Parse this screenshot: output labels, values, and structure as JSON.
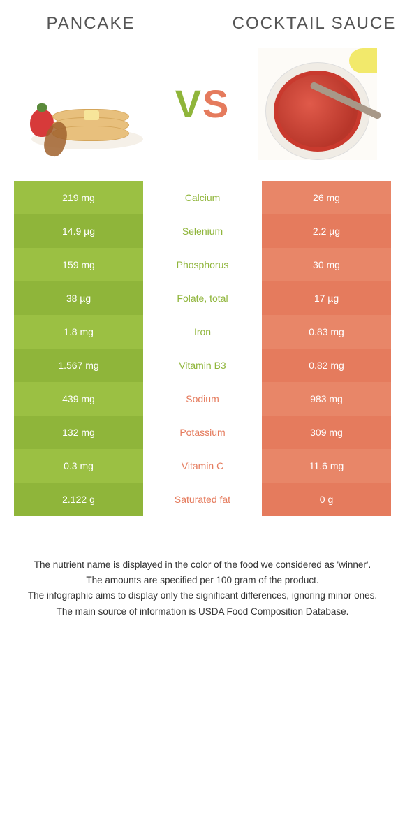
{
  "title_left": "PANCAKE",
  "title_right": "COCKTAIL SAUCE",
  "vs_left_letter": "V",
  "vs_right_letter": "S",
  "colors": {
    "left": "#8fb53a",
    "left_alt": "#9bc043",
    "right": "#e57b5d",
    "right_alt": "#e88668",
    "text": "#3a3a3a"
  },
  "rows": [
    {
      "left": "219 mg",
      "label": "Calcium",
      "right": "26 mg",
      "winner": "left"
    },
    {
      "left": "14.9 µg",
      "label": "Selenium",
      "right": "2.2 µg",
      "winner": "left"
    },
    {
      "left": "159 mg",
      "label": "Phosphorus",
      "right": "30 mg",
      "winner": "left"
    },
    {
      "left": "38 µg",
      "label": "Folate, total",
      "right": "17 µg",
      "winner": "left"
    },
    {
      "left": "1.8 mg",
      "label": "Iron",
      "right": "0.83 mg",
      "winner": "left"
    },
    {
      "left": "1.567 mg",
      "label": "Vitamin B3",
      "right": "0.82 mg",
      "winner": "left"
    },
    {
      "left": "439 mg",
      "label": "Sodium",
      "right": "983 mg",
      "winner": "right"
    },
    {
      "left": "132 mg",
      "label": "Potassium",
      "right": "309 mg",
      "winner": "right"
    },
    {
      "left": "0.3 mg",
      "label": "Vitamin C",
      "right": "11.6 mg",
      "winner": "right"
    },
    {
      "left": "2.122 g",
      "label": "Saturated fat",
      "right": "0 g",
      "winner": "right"
    }
  ],
  "footnotes": [
    "The nutrient name is displayed in the color of the food we considered as 'winner'.",
    "The amounts are specified per 100 gram of the product.",
    "The infographic aims to display only the significant differences, ignoring minor ones.",
    "The main source of information is USDA Food Composition Database."
  ]
}
